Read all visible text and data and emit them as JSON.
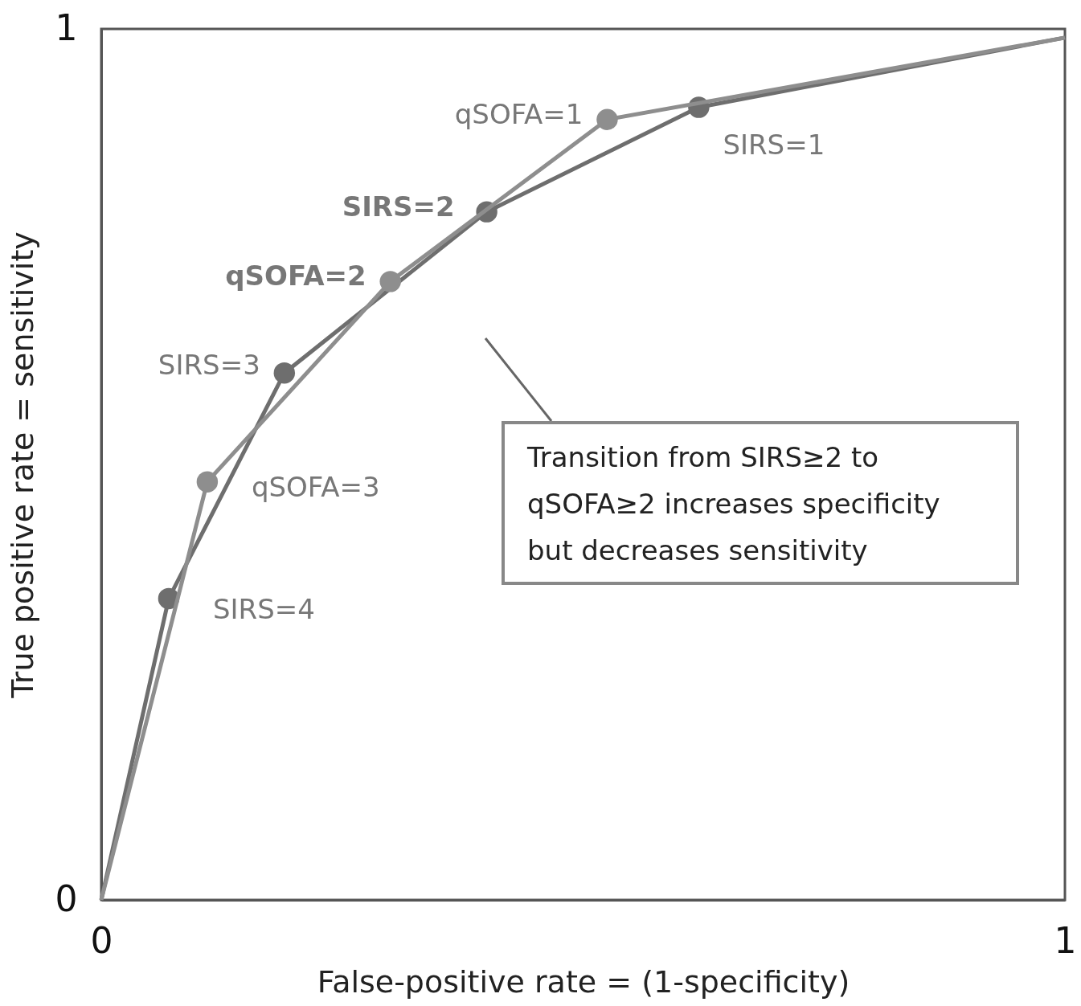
{
  "chart_data": {
    "type": "line",
    "xlabel": "False-positive rate = (1-specificity)",
    "ylabel": "True positive rate = sensitivity",
    "xlim": [
      0,
      1
    ],
    "ylim": [
      0,
      1
    ],
    "xticks": [
      0,
      1
    ],
    "yticks": [
      0,
      1
    ],
    "grid": false,
    "marker": "circle",
    "line_style": "solid",
    "series": [
      {
        "color": "#6e6e6e",
        "x": [
          0,
          0.07,
          0.19,
          0.4,
          0.62,
          1
        ],
        "values": [
          0,
          0.346,
          0.605,
          0.79,
          0.91,
          0.99
        ]
      },
      {
        "color": "#8e8e8e",
        "x": [
          0,
          0.11,
          0.3,
          0.525,
          1
        ],
        "values": [
          0,
          0.48,
          0.71,
          0.896,
          0.99
        ]
      }
    ],
    "annotations": [
      {
        "text": "SIRS=4",
        "x": 0.07,
        "y": 0.346
      },
      {
        "text": "SIRS=3",
        "x": 0.19,
        "y": 0.605
      },
      {
        "text": "SIRS=2",
        "x": 0.4,
        "y": 0.79
      },
      {
        "text": "SIRS=1",
        "x": 0.62,
        "y": 0.91
      },
      {
        "text": "qSOFA=3",
        "x": 0.11,
        "y": 0.48
      },
      {
        "text": "qSOFA=2",
        "x": 0.3,
        "y": 0.71
      },
      {
        "text": "qSOFA=1",
        "x": 0.525,
        "y": 0.896
      },
      "Transition from SIRS≥2 to qSOFA≥2 increases specificity but decreases sensitivity"
    ]
  }
}
